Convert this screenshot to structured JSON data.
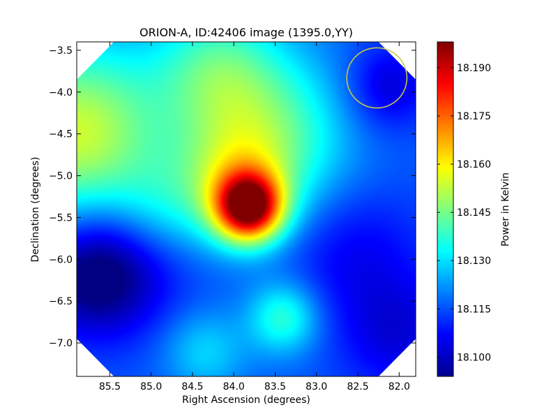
{
  "chart_data": {
    "type": "heatmap",
    "title": "ORION-A, ID:42406 image (1395.0,YY)",
    "xlabel": "Right Ascension (degrees)",
    "ylabel": "Declination (degrees)",
    "colorbar_label": "Power in Kelvin",
    "colormap": "jet",
    "xlim": [
      85.9,
      81.8
    ],
    "ylim": [
      -7.4,
      -3.4
    ],
    "x_inverted": true,
    "x_ticks": [
      85.5,
      85.0,
      84.5,
      84.0,
      83.5,
      83.0,
      82.5,
      82.0
    ],
    "x_tick_labels": [
      "85.5",
      "85.0",
      "84.5",
      "84.0",
      "83.5",
      "83.0",
      "82.5",
      "82.0"
    ],
    "y_ticks": [
      -3.5,
      -4.0,
      -4.5,
      -5.0,
      -5.5,
      -6.0,
      -6.5,
      -7.0
    ],
    "y_tick_labels": [
      "−3.5",
      "−4.0",
      "−4.5",
      "−5.0",
      "−5.5",
      "−6.0",
      "−6.5",
      "−7.0"
    ],
    "colorbar_range": [
      18.094,
      18.198
    ],
    "colorbar_ticks": [
      18.1,
      18.115,
      18.13,
      18.145,
      18.16,
      18.175,
      18.19
    ],
    "colorbar_tick_labels": [
      "18.100",
      "18.115",
      "18.130",
      "18.145",
      "18.160",
      "18.175",
      "18.190"
    ],
    "field_shape": "octagon",
    "field_corner_cut_deg": 0.45,
    "background": 18.116,
    "components": [
      {
        "ra": 83.82,
        "dec": -5.38,
        "amp": 0.071,
        "sigma": 0.28
      },
      {
        "ra": 83.95,
        "dec": -5.1,
        "amp": 0.028,
        "sigma": 0.5
      },
      {
        "ra": 85.9,
        "dec": -4.5,
        "amp": 0.038,
        "sigma": 0.75
      },
      {
        "ra": 84.2,
        "dec": -3.7,
        "amp": 0.02,
        "sigma": 0.55
      },
      {
        "ra": 83.9,
        "dec": -4.3,
        "amp": 0.012,
        "sigma": 0.6
      },
      {
        "ra": 83.2,
        "dec": -4.5,
        "amp": 0.015,
        "sigma": 0.65
      },
      {
        "ra": 83.4,
        "dec": -6.7,
        "amp": 0.022,
        "sigma": 0.3
      },
      {
        "ra": 84.35,
        "dec": -7.1,
        "amp": 0.013,
        "sigma": 0.35
      },
      {
        "ra": 84.9,
        "dec": -5.45,
        "amp": 0.012,
        "sigma": 0.45
      },
      {
        "ra": 82.4,
        "dec": -4.2,
        "amp": -0.004,
        "sigma": 0.45
      },
      {
        "ra": 85.7,
        "dec": -6.2,
        "amp": -0.022,
        "sigma": 0.5
      },
      {
        "ra": 85.2,
        "dec": -5.9,
        "amp": -0.01,
        "sigma": 0.6
      },
      {
        "ra": 82.55,
        "dec": -5.9,
        "amp": -0.01,
        "sigma": 0.6
      },
      {
        "ra": 82.0,
        "dec": -6.9,
        "amp": -0.012,
        "sigma": 0.5
      },
      {
        "ra": 82.1,
        "dec": -3.9,
        "amp": -0.012,
        "sigma": 0.35
      }
    ],
    "beam_circle": {
      "ra": 82.27,
      "dec": -3.83,
      "radius_deg": 0.36,
      "color": "#c8c84a"
    }
  }
}
